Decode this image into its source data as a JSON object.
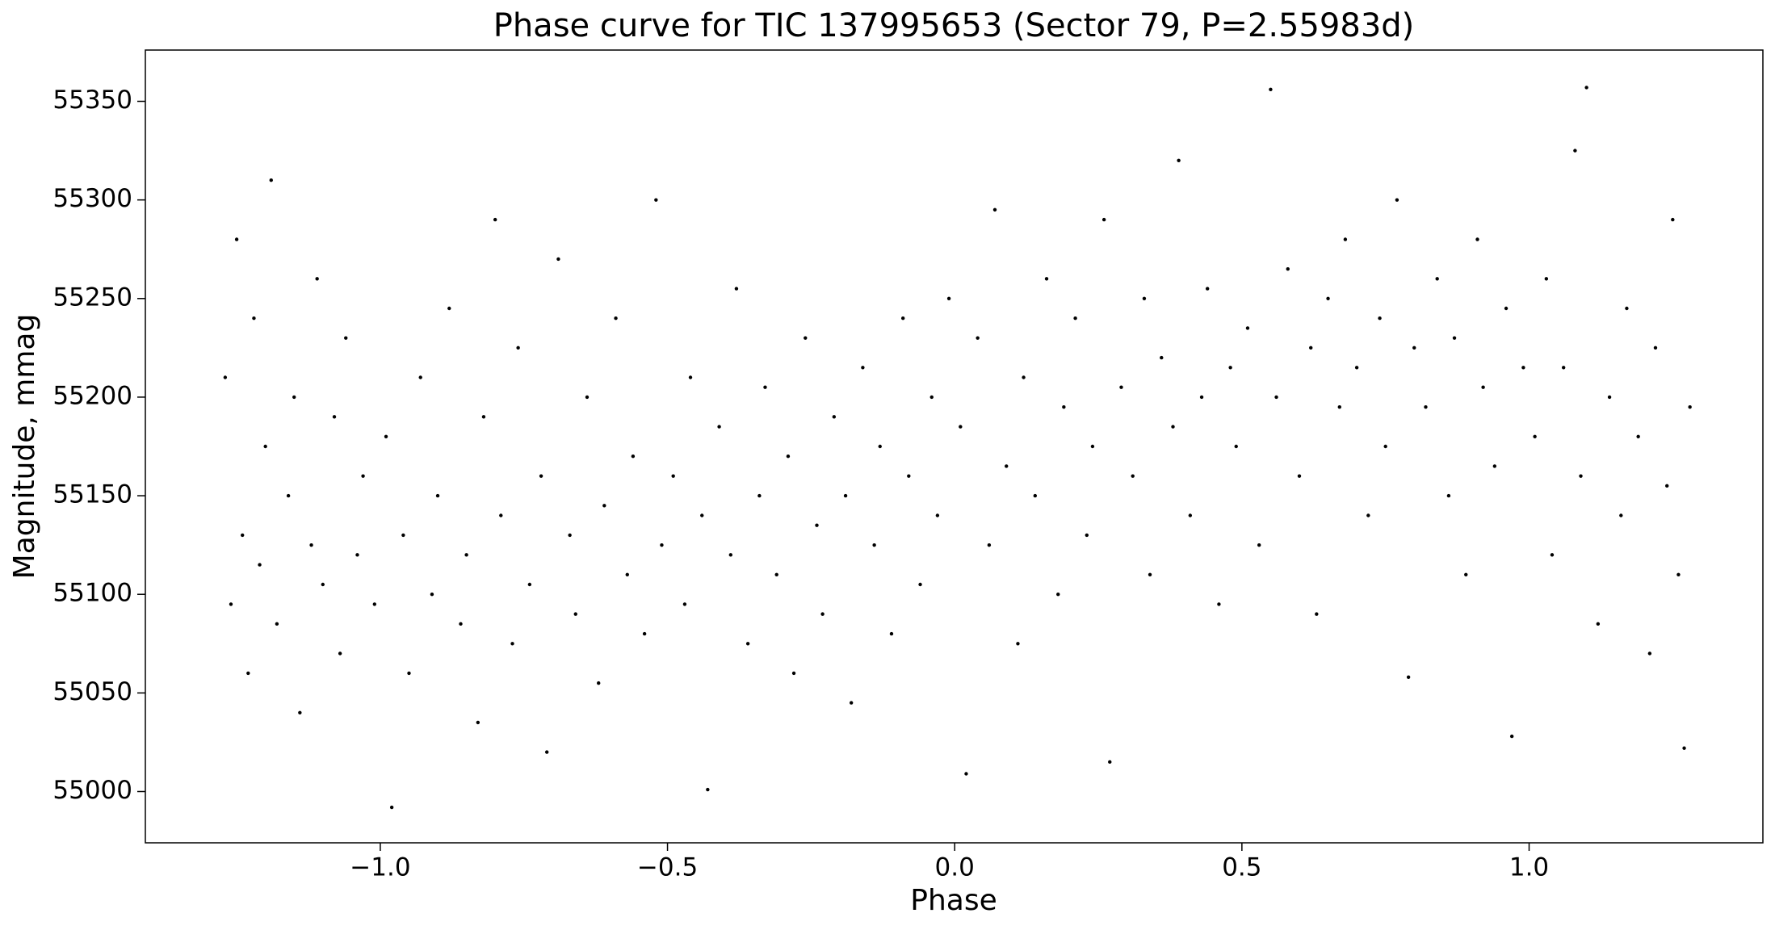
{
  "chart_data": {
    "type": "scatter",
    "title": "Phase curve for TIC 137995653 (Sector 79, P=2.55983d)",
    "x_label": "Phase",
    "y_label": "Magnitude, mmag",
    "xlim": [
      -1.409,
      1.407
    ],
    "ylim": [
      54974,
      55376
    ],
    "xticks": [
      {
        "value": -1.0,
        "label": "−1.0"
      },
      {
        "value": -0.5,
        "label": "−0.5"
      },
      {
        "value": 0.0,
        "label": "0.0"
      },
      {
        "value": 0.5,
        "label": "0.5"
      },
      {
        "value": 1.0,
        "label": "1.0"
      }
    ],
    "yticks": [
      55000,
      55050,
      55100,
      55150,
      55200,
      55250,
      55300,
      55350
    ],
    "color": "#000000",
    "grid": false,
    "x": [
      -1.27,
      -1.26,
      -1.25,
      -1.24,
      -1.23,
      -1.22,
      -1.21,
      -1.2,
      -1.19,
      -1.18,
      -1.16,
      -1.15,
      -1.14,
      -1.12,
      -1.11,
      -1.1,
      -1.08,
      -1.07,
      -1.06,
      -1.04,
      -1.03,
      -1.01,
      -0.99,
      -0.98,
      -0.96,
      -0.95,
      -0.93,
      -0.91,
      -0.9,
      -0.88,
      -0.86,
      -0.85,
      -0.83,
      -0.82,
      -0.8,
      -0.79,
      -0.77,
      -0.76,
      -0.74,
      -0.72,
      -0.71,
      -0.69,
      -0.67,
      -0.66,
      -0.64,
      -0.62,
      -0.61,
      -0.59,
      -0.57,
      -0.56,
      -0.54,
      -0.52,
      -0.51,
      -0.49,
      -0.47,
      -0.46,
      -0.44,
      -0.43,
      -0.41,
      -0.39,
      -0.38,
      -0.36,
      -0.34,
      -0.33,
      -0.31,
      -0.29,
      -0.28,
      -0.26,
      -0.24,
      -0.23,
      -0.21,
      -0.19,
      -0.18,
      -0.16,
      -0.14,
      -0.13,
      -0.11,
      -0.09,
      -0.08,
      -0.06,
      -0.04,
      -0.03,
      -0.01,
      0.01,
      0.02,
      0.04,
      0.06,
      0.07,
      0.09,
      0.11,
      0.12,
      0.14,
      0.16,
      0.18,
      0.19,
      0.21,
      0.23,
      0.24,
      0.26,
      0.27,
      0.29,
      0.31,
      0.33,
      0.34,
      0.36,
      0.38,
      0.39,
      0.41,
      0.43,
      0.44,
      0.46,
      0.48,
      0.49,
      0.51,
      0.53,
      0.55,
      0.56,
      0.58,
      0.6,
      0.62,
      0.63,
      0.65,
      0.67,
      0.68,
      0.7,
      0.72,
      0.74,
      0.75,
      0.77,
      0.79,
      0.8,
      0.82,
      0.84,
      0.86,
      0.87,
      0.89,
      0.91,
      0.92,
      0.94,
      0.96,
      0.97,
      0.99,
      1.01,
      1.03,
      1.04,
      1.06,
      1.08,
      1.09,
      1.1,
      1.12,
      1.14,
      1.16,
      1.17,
      1.19,
      1.21,
      1.22,
      1.24,
      1.25,
      1.26,
      1.27,
      1.28
    ],
    "values": [
      55210,
      55095,
      55280,
      55130,
      55060,
      55240,
      55115,
      55175,
      55310,
      55085,
      55150,
      55200,
      55040,
      55125,
      55260,
      55105,
      55190,
      55070,
      55230,
      55120,
      55160,
      55095,
      55180,
      54992,
      55130,
      55060,
      55210,
      55100,
      55150,
      55245,
      55085,
      55120,
      55035,
      55190,
      55290,
      55140,
      55075,
      55225,
      55105,
      55160,
      55020,
      55270,
      55130,
      55090,
      55200,
      55055,
      55145,
      55240,
      55110,
      55170,
      55080,
      55300,
      55125,
      55160,
      55095,
      55210,
      55140,
      55001,
      55185,
      55120,
      55255,
      55075,
      55150,
      55205,
      55110,
      55170,
      55060,
      55230,
      55135,
      55090,
      55190,
      55150,
      55045,
      55215,
      55125,
      55175,
      55080,
      55240,
      55160,
      55105,
      55200,
      55140,
      55250,
      55185,
      55009,
      55230,
      55125,
      55295,
      55165,
      55075,
      55210,
      55150,
      55260,
      55100,
      55195,
      55240,
      55130,
      55175,
      55290,
      55015,
      55205,
      55160,
      55250,
      55110,
      55220,
      55185,
      55320,
      55140,
      55200,
      55255,
      55095,
      55215,
      55175,
      55235,
      55125,
      55356,
      55200,
      55265,
      55160,
      55225,
      55090,
      55250,
      55195,
      55280,
      55215,
      55140,
      55240,
      55175,
      55300,
      55058,
      55225,
      55195,
      55260,
      55150,
      55230,
      55110,
      55280,
      55205,
      55165,
      55245,
      55028,
      55215,
      55180,
      55260,
      55120,
      55215,
      55325,
      55160,
      55357,
      55085,
      55200,
      55140,
      55245,
      55180,
      55070,
      55225,
      55155,
      55290,
      55110,
      55022,
      55195
    ]
  }
}
